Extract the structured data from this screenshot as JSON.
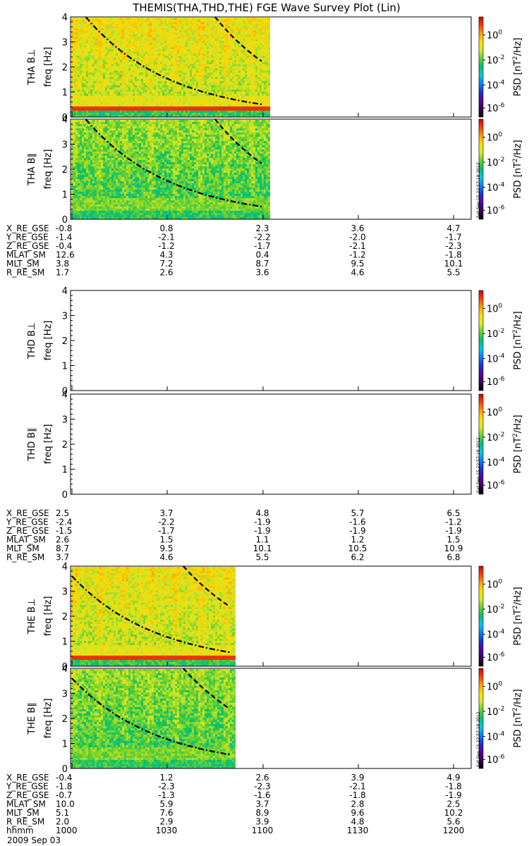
{
  "title": "THEMIS(THA,THD,THE) FGE Wave Survey Plot (Lin)",
  "colors": {
    "colorbar_stops": [
      "#000000",
      "#3a0055",
      "#5a00a0",
      "#2030d0",
      "#0080ff",
      "#00c8e8",
      "#00c070",
      "#60d030",
      "#d8e830",
      "#ffe000",
      "#ffa000",
      "#ff4000",
      "#d00000"
    ],
    "curve": "#000000",
    "background": "#ffffff"
  },
  "colorbar": {
    "label_prefix": "PSD ",
    "label_unit": "[nT",
    "label_sup": "2",
    "label_suffix": "/Hz]",
    "ticks": [
      {
        "base": "10",
        "exp": "0"
      },
      {
        "base": "10",
        "exp": "-2"
      },
      {
        "base": "10",
        "exp": "-4"
      },
      {
        "base": "10",
        "exp": "-6"
      }
    ]
  },
  "stamp": "Sat Sep 15 22:57:18 2012",
  "axes": {
    "ylabel": "freq [Hz]",
    "yticks": [
      "0",
      "1",
      "2",
      "3",
      "4"
    ]
  },
  "probes": [
    {
      "id": "tha",
      "panels": [
        "THA B⊥",
        "THA B∥"
      ],
      "has_data": true,
      "orbit_rows": [
        {
          "label": "X_RE_GSE",
          "values": [
            "-0.8",
            "0.8",
            "2.3",
            "3.6",
            "4.7"
          ]
        },
        {
          "label": "Y_RE_GSE",
          "values": [
            "-1.4",
            "-2.1",
            "-2.2",
            "-2.0",
            "-1.7"
          ]
        },
        {
          "label": "Z_RE_GSE",
          "values": [
            "-0.4",
            "-1.2",
            "-1.7",
            "-2.1",
            "-2.3"
          ]
        },
        {
          "label": "MLAT_SM",
          "values": [
            "12.6",
            "4.3",
            "0.4",
            "-1.2",
            "-1.8"
          ]
        },
        {
          "label": "MLT_SM",
          "values": [
            "3.8",
            "7.2",
            "8.7",
            "9.5",
            "10.1"
          ]
        },
        {
          "label": "R_RE_SM",
          "values": [
            "1.7",
            "2.6",
            "3.6",
            "4.6",
            "5.5"
          ]
        }
      ]
    },
    {
      "id": "thd",
      "panels": [
        "THD B⊥",
        "THD B∥"
      ],
      "has_data": false,
      "orbit_rows": [
        {
          "label": "X_RE_GSE",
          "values": [
            "2.5",
            "3.7",
            "4.8",
            "5.7",
            "6.5"
          ]
        },
        {
          "label": "Y_RE_GSE",
          "values": [
            "-2.4",
            "-2.2",
            "-1.9",
            "-1.6",
            "-1.2"
          ]
        },
        {
          "label": "Z_RE_GSE",
          "values": [
            "-1.5",
            "-1.7",
            "-1.9",
            "-1.9",
            "-1.9"
          ]
        },
        {
          "label": "MLAT_SM",
          "values": [
            "2.6",
            "1.5",
            "1.1",
            "1.2",
            "1.5"
          ]
        },
        {
          "label": "MLT_SM",
          "values": [
            "8.7",
            "9.5",
            "10.1",
            "10.5",
            "10.9"
          ]
        },
        {
          "label": "R_RE_SM",
          "values": [
            "3.7",
            "4.6",
            "5.5",
            "6.2",
            "6.8"
          ]
        }
      ]
    },
    {
      "id": "the",
      "panels": [
        "THE B⊥",
        "THE B∥"
      ],
      "has_data": true,
      "orbit_rows": [
        {
          "label": "X_RE_GSE",
          "values": [
            "-0.4",
            "1.2",
            "2.6",
            "3.9",
            "4.9"
          ]
        },
        {
          "label": "Y_RE_GSE",
          "values": [
            "-1.8",
            "-2.3",
            "-2.3",
            "-2.1",
            "-1.8"
          ]
        },
        {
          "label": "Z_RE_GSE",
          "values": [
            "-0.7",
            "-1.3",
            "-1.6",
            "-1.8",
            "-1.9"
          ]
        },
        {
          "label": "MLAT_SM",
          "values": [
            "10.0",
            "5.9",
            "3.7",
            "2.8",
            "2.5"
          ]
        },
        {
          "label": "MLT_SM",
          "values": [
            "5.1",
            "7.6",
            "8.9",
            "9.6",
            "10.2"
          ]
        },
        {
          "label": "R_RE_SM",
          "values": [
            "2.0",
            "2.9",
            "3.9",
            "4.8",
            "5.6"
          ]
        },
        {
          "label": "hhmm",
          "values": [
            "1000",
            "1030",
            "1100",
            "1130",
            "1200"
          ]
        }
      ]
    }
  ],
  "date": "2009 Sep 03",
  "chart_data": [
    {
      "type": "heatmap",
      "title": "THEMIS(THA,THD,THE) FGE Wave Survey Plot (Lin)",
      "probe": "THA",
      "panels": [
        "THA B⊥",
        "THA B∥"
      ],
      "xlabel": "hhmm",
      "x_ticks": [
        "1000",
        "1030",
        "1100",
        "1130",
        "1200"
      ],
      "ylabel": "freq [Hz]",
      "ylim": [
        0,
        4
      ],
      "colorbar_label": "PSD [nT^2/Hz]",
      "clim_log10": [
        -7,
        1.5
      ],
      "data_interval": [
        "1000",
        "1100"
      ],
      "typical_log10_psd": -1.3,
      "curves": [
        {
          "style": "dash-dot",
          "x_hhmm": [
            "1000",
            "1030",
            "1100"
          ],
          "y_hz": [
            4.7,
            1.2,
            0.5
          ]
        },
        {
          "style": "dash",
          "x_hhmm": [
            "1045",
            "1100"
          ],
          "y_hz": [
            4.0,
            2.2
          ]
        }
      ]
    },
    {
      "type": "heatmap",
      "probe": "THD",
      "panels": [
        "THD B⊥",
        "THD B∥"
      ],
      "xlabel": "hhmm",
      "x_ticks": [
        "1000",
        "1030",
        "1100",
        "1130",
        "1200"
      ],
      "ylabel": "freq [Hz]",
      "ylim": [
        0,
        4
      ],
      "data_interval": []
    },
    {
      "type": "heatmap",
      "probe": "THE",
      "panels": [
        "THE B⊥",
        "THE B∥"
      ],
      "xlabel": "hhmm",
      "x_ticks": [
        "1000",
        "1030",
        "1100",
        "1130",
        "1200"
      ],
      "ylabel": "freq [Hz]",
      "ylim": [
        0,
        4
      ],
      "data_interval": [
        "1000",
        "1050"
      ],
      "curves": [
        {
          "style": "dash-dot",
          "x_hhmm": [
            "1000",
            "1025",
            "1050"
          ],
          "y_hz": [
            3.6,
            1.2,
            0.55
          ]
        },
        {
          "style": "dash",
          "x_hhmm": [
            "1035",
            "1050"
          ],
          "y_hz": [
            4.0,
            2.35
          ]
        }
      ]
    }
  ]
}
